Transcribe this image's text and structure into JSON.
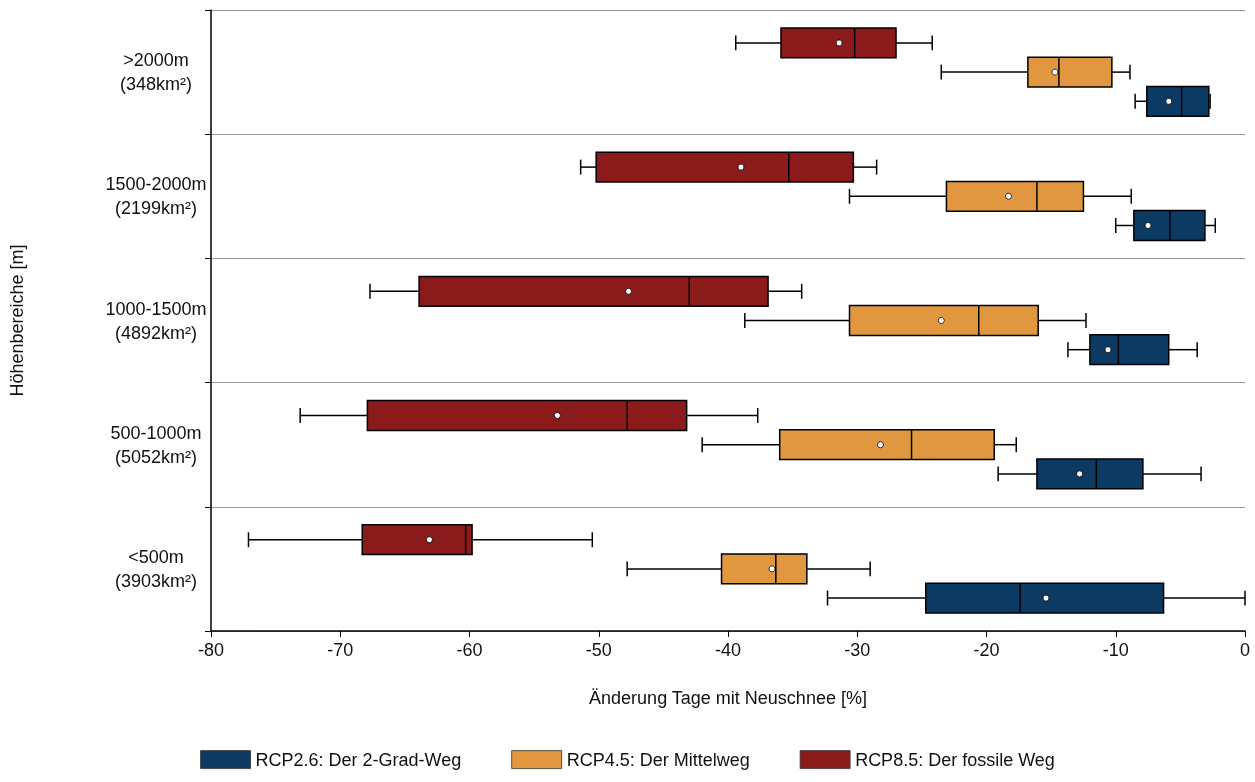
{
  "chart_data": {
    "type": "box",
    "orientation": "horizontal",
    "xlabel": "Änderung Tage mit Neuschnee [%]",
    "ylabel": "Höhenbereiche [m]",
    "categories": [
      ">2000m\n(348km²)",
      "1500-2000m\n(2199km²)",
      "1000-1500m\n(4892km²)",
      "500-1000m\n(5052km²)",
      "<500m\n(3903km²)"
    ],
    "xlim": [
      -80,
      0
    ],
    "xticks": [
      -80,
      -70,
      -60,
      -50,
      -40,
      -30,
      -20,
      -10,
      0
    ],
    "grid": "y",
    "legend": "bottom",
    "series": [
      {
        "name": "RCP2.6: Der 2-Grad-Weg",
        "color": "#0d3a63",
        "boxes": [
          {
            "low": -8.5,
            "q1": -7.6,
            "median": -4.9,
            "q3": -2.8,
            "high": -2.7,
            "mean": -5.9
          },
          {
            "low": -10.0,
            "q1": -8.6,
            "median": -5.8,
            "q3": -3.1,
            "high": -2.3,
            "mean": -7.5
          },
          {
            "low": -13.7,
            "q1": -12.0,
            "median": -9.8,
            "q3": -5.9,
            "high": -3.7,
            "mean": -10.6
          },
          {
            "low": -19.1,
            "q1": -16.1,
            "median": -11.5,
            "q3": -7.9,
            "high": -3.4,
            "mean": -12.8
          },
          {
            "low": -32.3,
            "q1": -24.7,
            "median": -17.4,
            "q3": -6.3,
            "high": 0,
            "mean": -15.4
          }
        ]
      },
      {
        "name": "RCP4.5: Der Mittelweg",
        "color": "#e0973f",
        "boxes": [
          {
            "low": -23.5,
            "q1": -16.8,
            "median": -14.4,
            "q3": -10.3,
            "high": -8.9,
            "mean": -14.7
          },
          {
            "low": -30.6,
            "q1": -23.1,
            "median": -16.1,
            "q3": -12.5,
            "high": -8.8,
            "mean": -18.3
          },
          {
            "low": -38.7,
            "q1": -30.6,
            "median": -20.6,
            "q3": -16.0,
            "high": -12.3,
            "mean": -23.5
          },
          {
            "low": -42.0,
            "q1": -36.0,
            "median": -25.8,
            "q3": -19.4,
            "high": -17.7,
            "mean": -28.2
          },
          {
            "low": -47.8,
            "q1": -40.5,
            "median": -36.3,
            "q3": -33.9,
            "high": -29.0,
            "mean": -36.6
          }
        ]
      },
      {
        "name": "RCP8.5: Der fossile Weg",
        "color": "#8b1a1a",
        "boxes": [
          {
            "low": -39.4,
            "q1": -35.9,
            "median": -30.2,
            "q3": -27.0,
            "high": -24.2,
            "mean": -31.4
          },
          {
            "low": -51.4,
            "q1": -50.2,
            "median": -35.3,
            "q3": -30.3,
            "high": -28.5,
            "mean": -39.0
          },
          {
            "low": -67.7,
            "q1": -63.9,
            "median": -43.0,
            "q3": -36.9,
            "high": -34.3,
            "mean": -47.7
          },
          {
            "low": -73.1,
            "q1": -67.9,
            "median": -47.8,
            "q3": -43.2,
            "high": -37.7,
            "mean": -53.2
          },
          {
            "low": -77.1,
            "q1": -68.3,
            "median": -60.3,
            "q3": -59.8,
            "high": -50.5,
            "mean": -63.1
          }
        ]
      }
    ]
  }
}
